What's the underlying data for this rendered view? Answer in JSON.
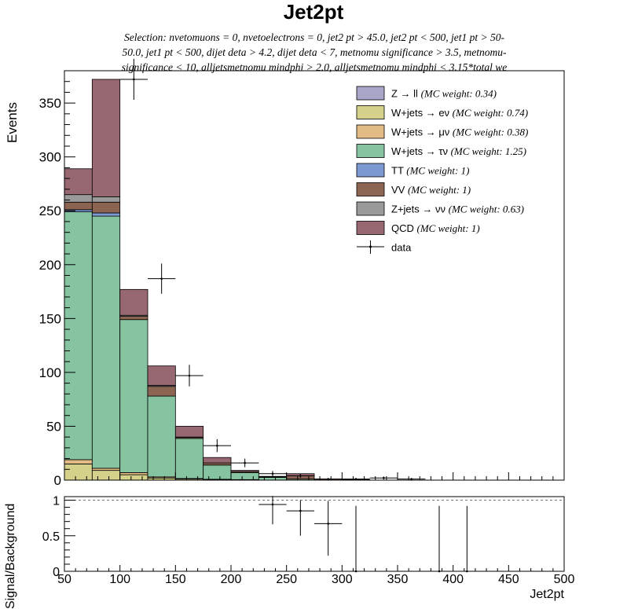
{
  "header": {
    "title": "Jet2pt",
    "subtitle_lines": [
      "Selection: nvetomuons = 0, nvetoelectrons = 0, jet2 pt > 45.0, jet2 pt < 500, jet1 pt > 50-",
      "50.0, jet1 pt < 500, dijet deta > 4.2, dijet deta < 7, metnomu significance > 3.5, metnomu-",
      "significance < 10, alljetsmetnomu mindphi > 2.0, alljetsmetnomu mindphi < 3.15*total we"
    ]
  },
  "colors": {
    "zll": "#a8a5c7",
    "wenu": "#d4d18a",
    "wmunu": "#e3bb85",
    "wtaunu": "#86c3a0",
    "tt": "#7b98d1",
    "vv": "#8b6452",
    "znunu": "#9a9a9a",
    "qcd": "#976872"
  },
  "chart_data": [
    {
      "type": "bar",
      "stacked": true,
      "xlabel": "Jet2pt",
      "ylabel": "Events",
      "xlim": [
        50,
        500
      ],
      "ylim": [
        0,
        380
      ],
      "x_ticks": [
        50,
        100,
        150,
        200,
        250,
        300,
        350,
        400,
        450,
        500
      ],
      "y_ticks": [
        0,
        50,
        100,
        150,
        200,
        250,
        300,
        350
      ],
      "legend_position": "top-right",
      "bin_edges": [
        50,
        75,
        100,
        125,
        150,
        175,
        200,
        225,
        250,
        275,
        300,
        325,
        350,
        375,
        400,
        425,
        450,
        475,
        500
      ],
      "series": [
        {
          "name": "Z → ll",
          "note": "(MC weight: 0.34)",
          "color_key": "zll",
          "values": [
            0,
            0,
            0,
            0,
            0,
            0,
            0,
            0,
            0,
            0,
            0,
            0,
            0,
            0,
            0,
            0,
            0,
            0
          ]
        },
        {
          "name": "W+jets → eν",
          "note": "(MC weight: 0.74)",
          "color_key": "wenu",
          "values": [
            15,
            9,
            5,
            2,
            1,
            0.5,
            0.3,
            0,
            0,
            0,
            0,
            0,
            0,
            0,
            0,
            0,
            0,
            0
          ]
        },
        {
          "name": "W+jets → μν",
          "note": "(MC weight: 0.38)",
          "color_key": "wmunu",
          "values": [
            4,
            2,
            2,
            1,
            0.5,
            0.3,
            0.2,
            0,
            0,
            0,
            0,
            0,
            0,
            0,
            0,
            0,
            0,
            0
          ]
        },
        {
          "name": "W+jets → τν",
          "note": "(MC weight: 1.25)",
          "color_key": "wtaunu",
          "values": [
            230,
            234,
            142,
            75,
            37.2,
            13.2,
            6.5,
            2.5,
            1,
            0,
            0.5,
            0,
            0,
            0,
            0,
            0,
            0,
            0
          ]
        },
        {
          "name": "TT",
          "note": "(MC weight: 1)",
          "color_key": "tt",
          "values": [
            2,
            3,
            0,
            0,
            0,
            0,
            0,
            0,
            0,
            0,
            0,
            0,
            0,
            0,
            0,
            0,
            0,
            0
          ]
        },
        {
          "name": "VV",
          "note": "(MC weight: 1)",
          "color_key": "vv",
          "values": [
            7,
            10,
            3,
            9,
            1,
            2,
            1,
            0.5,
            3,
            1,
            0,
            0,
            0,
            0,
            0,
            0,
            0,
            0
          ]
        },
        {
          "name": "Z+jets → νν",
          "note": "(MC weight: 0.63)",
          "color_key": "znunu",
          "values": [
            7,
            5,
            1,
            1,
            0.3,
            0,
            0,
            0,
            0,
            0,
            0,
            0,
            0,
            0,
            0,
            0,
            0,
            0
          ]
        },
        {
          "name": "QCD",
          "note": "(MC weight: 1)",
          "color_key": "qcd",
          "values": [
            24,
            109,
            24,
            18,
            10,
            5,
            1,
            0.5,
            2,
            0,
            0,
            0,
            0,
            0,
            0,
            0,
            0,
            0
          ]
        }
      ],
      "data": {
        "name": "data",
        "x": [
          112.5,
          137.5,
          162.5,
          187.5,
          212.5,
          237.5,
          262.5,
          287.5,
          312.5,
          337.5,
          362.5
        ],
        "y": [
          372,
          187,
          97,
          32,
          16,
          6,
          4,
          1,
          1,
          2,
          1
        ],
        "yerr": [
          19,
          14,
          10,
          6,
          4,
          2.5,
          2,
          1,
          1,
          1.4,
          1
        ]
      }
    },
    {
      "type": "scatter",
      "xlabel": "Jet2pt",
      "ylabel": "Signal/Background",
      "xlim": [
        50,
        500
      ],
      "ylim": [
        0,
        1.05
      ],
      "x_ticks": [
        50,
        100,
        150,
        200,
        250,
        300,
        350,
        400,
        450,
        500
      ],
      "y_ticks": [
        0,
        0.5,
        1
      ],
      "x": [
        237.5,
        262.5,
        287.5,
        312.5,
        387.5,
        412.5
      ],
      "y": [
        0.94,
        0.85,
        0.67,
        0,
        0,
        0
      ],
      "yerr_up": [
        0.12,
        0.15,
        0.32,
        0.92,
        0.92,
        0.92
      ],
      "yerr_down": [
        0.28,
        0.35,
        0.45,
        0,
        0,
        0
      ],
      "reference_line": 1
    }
  ]
}
